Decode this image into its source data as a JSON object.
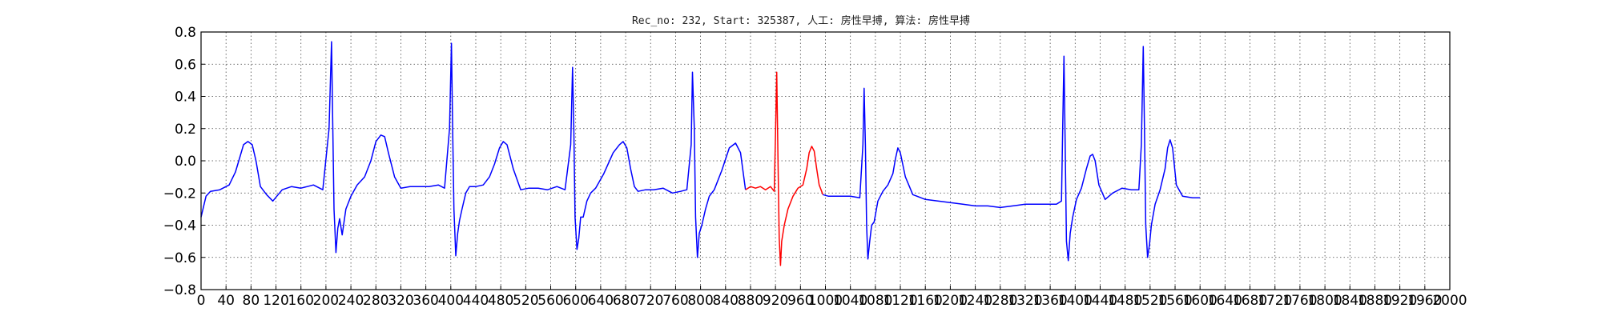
{
  "chart_data": {
    "type": "line",
    "title": "Rec_no: 232, Start: 325387, 人工: 房性早搏, 算法: 房性早搏",
    "xlabel": "",
    "ylabel": "",
    "xlim": [
      0,
      2000
    ],
    "ylim": [
      -0.8,
      0.8
    ],
    "grid": true,
    "y_ticks": [
      0.8,
      0.6,
      0.4,
      0.2,
      0.0,
      -0.2,
      -0.4,
      -0.6,
      -0.8
    ],
    "y_tick_labels": [
      "0.8",
      "0.6",
      "0.4",
      "0.2",
      "0.0",
      "−0.2",
      "−0.4",
      "−0.6",
      "−0.8"
    ],
    "x_ticks": [
      0,
      40,
      80,
      120,
      160,
      200,
      240,
      280,
      320,
      360,
      400,
      440,
      480,
      520,
      560,
      600,
      640,
      680,
      720,
      760,
      800,
      840,
      880,
      920,
      960,
      1000,
      1040,
      1080,
      1120,
      1160,
      1200,
      1240,
      1280,
      1320,
      1360,
      1400,
      1440,
      1480,
      1520,
      1560,
      1600,
      1640,
      1680,
      1720,
      1760,
      1800,
      1840,
      1880,
      1920,
      1960,
      2000
    ],
    "x_tick_labels": [
      "0",
      "40",
      "80",
      "120",
      "160",
      "200",
      "240",
      "280",
      "320",
      "360",
      "400",
      "440",
      "480",
      "520",
      "560",
      "600",
      "640",
      "680",
      "720",
      "760",
      "800",
      "840",
      "880",
      "920",
      "960",
      "1000",
      "1040",
      "1080",
      "1120",
      "1160",
      "1200",
      "1240",
      "1280",
      "1320",
      "1360",
      "1400",
      "1440",
      "1480",
      "1520",
      "1560",
      "1600",
      "1640",
      "1680",
      "1720",
      "1760",
      "1800",
      "1840",
      "1880",
      "1920",
      "1960",
      "2000"
    ],
    "series": [
      {
        "color": "#0000ff",
        "x": [
          0,
          8,
          15,
          30,
          45,
          55,
          62,
          68,
          75,
          82,
          88,
          95,
          105,
          115,
          130,
          145,
          160,
          180,
          195,
          205,
          209,
          211,
          213,
          216,
          219,
          222,
          226,
          232,
          240,
          250,
          262,
          272,
          280,
          288,
          294,
          300,
          310,
          320,
          335,
          350,
          365,
          380,
          390,
          398,
          401,
          403,
          405,
          408,
          411,
          414,
          418,
          424,
          430,
          440,
          452,
          462,
          470,
          478,
          484,
          490,
          500,
          512,
          525,
          540,
          555,
          570,
          583,
          592,
          595,
          597,
          599,
          602,
          605,
          608,
          612,
          618,
          624,
          632,
          645,
          660,
          670,
          676,
          682,
          688,
          694,
          700,
          712,
          725,
          740,
          755,
          768,
          778,
          785,
          787,
          790,
          792,
          795,
          798,
          802,
          808,
          814,
          822,
          834,
          846,
          856,
          864,
          872
        ],
        "y": [
          -0.35,
          -0.22,
          -0.19,
          -0.18,
          -0.15,
          -0.07,
          0.02,
          0.1,
          0.12,
          0.1,
          0.0,
          -0.16,
          -0.21,
          -0.25,
          -0.18,
          -0.16,
          -0.17,
          -0.15,
          -0.18,
          0.2,
          0.74,
          0.2,
          -0.3,
          -0.57,
          -0.42,
          -0.36,
          -0.46,
          -0.3,
          -0.22,
          -0.15,
          -0.1,
          0.0,
          0.12,
          0.16,
          0.15,
          0.05,
          -0.1,
          -0.17,
          -0.16,
          -0.16,
          -0.16,
          -0.15,
          -0.17,
          0.2,
          0.73,
          0.2,
          -0.3,
          -0.59,
          -0.45,
          -0.37,
          -0.3,
          -0.2,
          -0.16,
          -0.16,
          -0.15,
          -0.1,
          -0.02,
          0.08,
          0.12,
          0.1,
          -0.05,
          -0.18,
          -0.17,
          -0.17,
          -0.18,
          -0.16,
          -0.18,
          0.1,
          0.58,
          0.2,
          -0.35,
          -0.55,
          -0.48,
          -0.35,
          -0.35,
          -0.25,
          -0.2,
          -0.17,
          -0.08,
          0.05,
          0.1,
          0.12,
          0.08,
          -0.05,
          -0.16,
          -0.19,
          -0.18,
          -0.18,
          -0.17,
          -0.2,
          -0.19,
          -0.18,
          0.1,
          0.55,
          0.2,
          -0.35,
          -0.6,
          -0.45,
          -0.4,
          -0.3,
          -0.22,
          -0.18,
          -0.06,
          0.08,
          0.11,
          0.05,
          -0.18
        ]
      },
      {
        "color": "#ff0000",
        "x": [
          872,
          880,
          888,
          896,
          904,
          912,
          918,
          920,
          922,
          924,
          926,
          928,
          930,
          934,
          940,
          948,
          956,
          964,
          970,
          974,
          978,
          982,
          986,
          990,
          996
        ],
        "y": [
          -0.18,
          -0.16,
          -0.17,
          -0.16,
          -0.18,
          -0.16,
          -0.19,
          0.15,
          0.55,
          0.0,
          -0.48,
          -0.65,
          -0.5,
          -0.4,
          -0.3,
          -0.22,
          -0.17,
          -0.15,
          -0.05,
          0.05,
          0.09,
          0.06,
          -0.05,
          -0.15,
          -0.21
        ]
      },
      {
        "color": "#0000ff",
        "x": [
          996,
          1005,
          1020,
          1040,
          1055,
          1060,
          1062,
          1064,
          1066,
          1068,
          1071,
          1074,
          1078,
          1084,
          1092,
          1100,
          1108,
          1112,
          1116,
          1120,
          1128,
          1140,
          1160,
          1180,
          1200,
          1220,
          1240,
          1260,
          1280,
          1300,
          1320,
          1340,
          1370,
          1378,
          1380,
          1382,
          1384,
          1386,
          1389,
          1392,
          1396,
          1402,
          1410,
          1418,
          1424,
          1428,
          1432,
          1438,
          1448,
          1460,
          1475,
          1490,
          1502,
          1506,
          1509,
          1511,
          1513,
          1516,
          1519,
          1522,
          1528,
          1536,
          1544,
          1548,
          1552,
          1556,
          1562,
          1572,
          1588,
          1600
        ],
        "y": [
          -0.21,
          -0.22,
          -0.22,
          -0.22,
          -0.23,
          0.1,
          0.45,
          0.1,
          -0.4,
          -0.61,
          -0.5,
          -0.4,
          -0.38,
          -0.25,
          -0.19,
          -0.15,
          -0.08,
          0.01,
          0.08,
          0.05,
          -0.1,
          -0.21,
          -0.24,
          -0.25,
          -0.26,
          -0.27,
          -0.28,
          -0.28,
          -0.29,
          -0.28,
          -0.27,
          -0.27,
          -0.27,
          -0.25,
          0.2,
          0.65,
          0.1,
          -0.5,
          -0.62,
          -0.45,
          -0.35,
          -0.24,
          -0.17,
          -0.05,
          0.03,
          0.04,
          0.0,
          -0.15,
          -0.24,
          -0.2,
          -0.17,
          -0.18,
          -0.18,
          0.1,
          0.71,
          0.2,
          -0.4,
          -0.6,
          -0.52,
          -0.4,
          -0.27,
          -0.18,
          -0.05,
          0.08,
          0.13,
          0.08,
          -0.15,
          -0.22,
          -0.23,
          -0.23
        ]
      }
    ]
  }
}
